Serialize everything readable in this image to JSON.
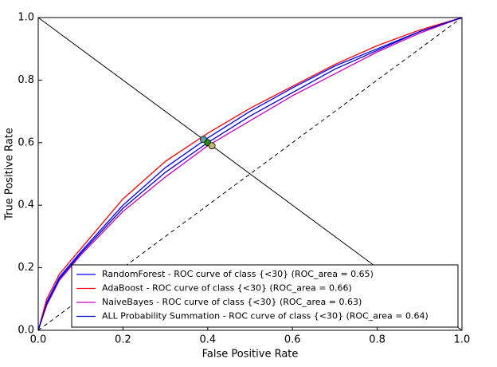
{
  "chart_data": {
    "type": "line",
    "xlabel": "False Positive Rate",
    "ylabel": "True Positive Rate",
    "x": [
      0,
      0.02,
      0.05,
      0.1,
      0.2,
      0.3,
      0.4,
      0.5,
      0.6,
      0.7,
      0.8,
      0.9,
      1.0
    ],
    "series": [
      {
        "name": "RandomForest - ROC curve of class {<30} (ROC_area = 0.65)",
        "color": "#0000ff",
        "values": [
          0,
          0.09,
          0.17,
          0.25,
          0.4,
          0.52,
          0.615,
          0.7,
          0.775,
          0.845,
          0.9,
          0.955,
          1.0
        ]
      },
      {
        "name": "AdaBoost - ROC curve of class {<30} (ROC_area = 0.66)",
        "color": "#ff0000",
        "values": [
          0,
          0.1,
          0.18,
          0.26,
          0.42,
          0.54,
          0.63,
          0.71,
          0.78,
          0.85,
          0.91,
          0.96,
          1.0
        ]
      },
      {
        "name": "NaiveBayes - ROC curve of class {<30} (ROC_area = 0.63)",
        "color": "#cc00cc",
        "values": [
          0,
          0.08,
          0.16,
          0.24,
          0.38,
          0.49,
          0.59,
          0.67,
          0.75,
          0.82,
          0.89,
          0.95,
          1.0
        ]
      },
      {
        "name": "ALL Probability Summation - ROC curve of class {<30} (ROC_area = 0.64)",
        "color": "#0000cc",
        "values": [
          0,
          0.085,
          0.165,
          0.245,
          0.39,
          0.505,
          0.6,
          0.685,
          0.76,
          0.835,
          0.895,
          0.955,
          1.0
        ]
      }
    ],
    "points": [
      {
        "x": 0.39,
        "y": 0.61,
        "color": "#5f9ea0"
      },
      {
        "x": 0.4,
        "y": 0.6,
        "color": "#228b22"
      },
      {
        "x": 0.41,
        "y": 0.59,
        "color": "#bdb76b"
      }
    ],
    "xlim": [
      0,
      1
    ],
    "ylim": [
      0,
      1
    ],
    "xticks": [
      {
        "value": 0,
        "label": "0.0"
      },
      {
        "value": 0.2,
        "label": "0.2"
      },
      {
        "value": 0.4,
        "label": "0.4"
      },
      {
        "value": 0.6,
        "label": "0.6"
      },
      {
        "value": 0.8,
        "label": "0.8"
      },
      {
        "value": 1,
        "label": "1.0"
      }
    ],
    "yticks": [
      {
        "value": 0,
        "label": "0.0"
      },
      {
        "value": 0.2,
        "label": "0.2"
      },
      {
        "value": 0.4,
        "label": "0.4"
      },
      {
        "value": 0.6,
        "label": "0.6"
      },
      {
        "value": 0.8,
        "label": "0.8"
      },
      {
        "value": 1,
        "label": "1.0"
      }
    ],
    "legend": "lower right"
  }
}
